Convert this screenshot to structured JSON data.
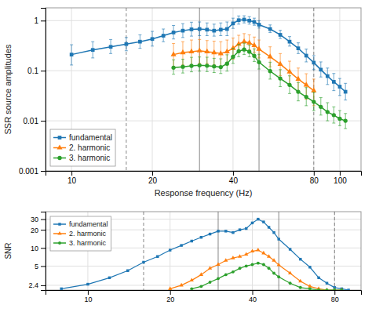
{
  "chart_data": [
    {
      "type": "line",
      "xlabel": "Response frequency (Hz)",
      "ylabel": "SSR source amplitudes",
      "log": true,
      "grid": true,
      "legend": "lower left",
      "xlim": [
        8,
        120
      ],
      "ylim": [
        0.001,
        1.8
      ],
      "xticks": [
        10,
        20,
        40,
        80,
        100
      ],
      "yticks": [
        0.001,
        0.01,
        0.1,
        1
      ],
      "vlines": [
        {
          "x": 16,
          "line_style": "dashed"
        },
        {
          "x": 30,
          "line_style": "solid"
        },
        {
          "x": 50,
          "line_style": "solid"
        },
        {
          "x": 80,
          "line_style": "dashed"
        }
      ],
      "series": [
        {
          "name": "fundamental",
          "marker": "square",
          "x": [
            10,
            12,
            14,
            16,
            18,
            20,
            22,
            24,
            26,
            28,
            30,
            32,
            34,
            36,
            38,
            40,
            42,
            44,
            46,
            48,
            50,
            55,
            60,
            65,
            70,
            75,
            80,
            85,
            90,
            95,
            100,
            105
          ],
          "values": [
            0.21,
            0.26,
            0.3,
            0.34,
            0.38,
            0.43,
            0.5,
            0.58,
            0.63,
            0.67,
            0.68,
            0.66,
            0.63,
            0.66,
            0.68,
            0.88,
            1.02,
            1.05,
            1.0,
            0.94,
            0.83,
            0.68,
            0.52,
            0.38,
            0.28,
            0.2,
            0.145,
            0.105,
            0.078,
            0.06,
            0.048,
            0.038
          ],
          "error_lo": [
            0.08,
            0.08,
            0.08,
            0.09,
            0.1,
            0.12,
            0.12,
            0.15,
            0.17,
            0.18,
            0.18,
            0.16,
            0.14,
            0.16,
            0.18,
            0.18,
            0.17,
            0.15,
            0.15,
            0.13,
            0.12,
            0.1,
            0.08,
            0.07,
            0.06,
            0.05,
            0.04,
            0.03,
            0.025,
            0.02,
            0.016,
            0.012
          ],
          "error_hi": [
            0.12,
            0.12,
            0.12,
            0.12,
            0.14,
            0.18,
            0.18,
            0.22,
            0.24,
            0.26,
            0.26,
            0.24,
            0.22,
            0.24,
            0.26,
            0.24,
            0.22,
            0.2,
            0.2,
            0.18,
            0.17,
            0.14,
            0.12,
            0.1,
            0.08,
            0.07,
            0.055,
            0.045,
            0.035,
            0.028,
            0.022,
            0.018
          ]
        },
        {
          "name": "2. harmonic",
          "marker": "triangle",
          "x": [
            24,
            26,
            28,
            30,
            32,
            34,
            36,
            38,
            40,
            42,
            44,
            46,
            48,
            50,
            55,
            60,
            65,
            70,
            75,
            80
          ],
          "values": [
            0.21,
            0.23,
            0.24,
            0.25,
            0.24,
            0.23,
            0.22,
            0.24,
            0.28,
            0.34,
            0.38,
            0.36,
            0.32,
            0.27,
            0.19,
            0.135,
            0.095,
            0.068,
            0.052,
            0.04
          ],
          "error_lo": [
            0.09,
            0.1,
            0.11,
            0.11,
            0.1,
            0.1,
            0.1,
            0.11,
            0.11,
            0.11,
            0.11,
            0.1,
            0.09,
            0.09,
            0.07,
            0.055,
            0.04,
            0.03,
            0.025,
            0.02
          ],
          "error_hi": [
            0.14,
            0.15,
            0.17,
            0.17,
            0.16,
            0.16,
            0.16,
            0.17,
            0.17,
            0.17,
            0.17,
            0.16,
            0.15,
            0.14,
            0.11,
            0.085,
            0.06,
            0.045,
            0.035,
            0.028
          ]
        },
        {
          "name": "3. harmonic",
          "marker": "circle",
          "x": [
            24,
            26,
            28,
            30,
            32,
            34,
            36,
            38,
            40,
            42,
            44,
            46,
            48,
            50,
            55,
            60,
            65,
            70,
            75,
            80,
            85,
            90,
            95,
            100,
            105
          ],
          "values": [
            0.115,
            0.12,
            0.125,
            0.128,
            0.126,
            0.122,
            0.118,
            0.138,
            0.19,
            0.245,
            0.265,
            0.24,
            0.198,
            0.148,
            0.098,
            0.07,
            0.052,
            0.038,
            0.03,
            0.024,
            0.019,
            0.015,
            0.013,
            0.011,
            0.01
          ],
          "error_lo": [
            0.03,
            0.03,
            0.03,
            0.03,
            0.03,
            0.03,
            0.03,
            0.04,
            0.05,
            0.055,
            0.055,
            0.05,
            0.045,
            0.04,
            0.03,
            0.022,
            0.017,
            0.013,
            0.01,
            0.008,
            0.006,
            0.005,
            0.004,
            0.003,
            0.003
          ],
          "error_hi": [
            0.05,
            0.05,
            0.06,
            0.06,
            0.06,
            0.055,
            0.055,
            0.07,
            0.09,
            0.09,
            0.09,
            0.085,
            0.075,
            0.065,
            0.05,
            0.035,
            0.027,
            0.02,
            0.016,
            0.013,
            0.01,
            0.008,
            0.006,
            0.005,
            0.004
          ]
        }
      ]
    },
    {
      "type": "line",
      "ylabel": "SNR",
      "log": true,
      "grid": true,
      "legend": "upper left",
      "xlim": [
        7,
        100
      ],
      "ylim": [
        2.0,
        40
      ],
      "xticks": [
        10,
        20,
        40,
        80
      ],
      "yticks": [
        2.4,
        5,
        10,
        20,
        30
      ],
      "vlines": [
        {
          "x": 16,
          "line_style": "dashed"
        },
        {
          "x": 30,
          "line_style": "solid"
        },
        {
          "x": 50,
          "line_style": "solid"
        },
        {
          "x": 80,
          "line_style": "dashed"
        }
      ],
      "series": [
        {
          "name": "fundamental",
          "marker": "square",
          "x": [
            8,
            10,
            12,
            14,
            16,
            18,
            20,
            22,
            24,
            26,
            28,
            30,
            32,
            34,
            36,
            38,
            40,
            42,
            44,
            46,
            48,
            50,
            55,
            60,
            65,
            70,
            75,
            80,
            85,
            90
          ],
          "values": [
            2.1,
            2.5,
            3.2,
            4.2,
            5.8,
            7.2,
            9.2,
            11,
            13,
            15,
            17,
            19,
            19,
            18,
            20,
            21,
            26,
            30,
            27,
            22,
            18,
            14,
            9.5,
            6.5,
            4.8,
            3.2,
            2.6,
            2.2,
            2.1,
            2.0
          ]
        },
        {
          "name": "2. harmonic",
          "marker": "triangle",
          "x": [
            20,
            22,
            24,
            26,
            28,
            30,
            32,
            34,
            36,
            38,
            40,
            42,
            44,
            46,
            48,
            50,
            55,
            60,
            65,
            70,
            75,
            80,
            85
          ],
          "values": [
            2.1,
            2.4,
            2.9,
            3.6,
            4.6,
            5.3,
            6.2,
            6.8,
            7.2,
            7.8,
            8.8,
            9.2,
            8.2,
            7.2,
            6.2,
            5.2,
            3.8,
            2.8,
            2.3,
            2.1,
            2.0,
            2.0,
            2.0
          ]
        },
        {
          "name": "3. harmonic",
          "marker": "circle",
          "x": [
            24,
            26,
            28,
            30,
            32,
            34,
            36,
            38,
            40,
            42,
            44,
            46,
            48,
            50,
            55,
            60,
            65,
            70,
            75,
            80,
            85
          ],
          "values": [
            2.1,
            2.3,
            2.7,
            3.1,
            3.6,
            4.0,
            4.6,
            5.0,
            5.3,
            5.6,
            5.3,
            4.6,
            3.8,
            3.3,
            2.6,
            2.2,
            2.1,
            2.0,
            2.0,
            2.0,
            2.0
          ]
        }
      ]
    }
  ]
}
